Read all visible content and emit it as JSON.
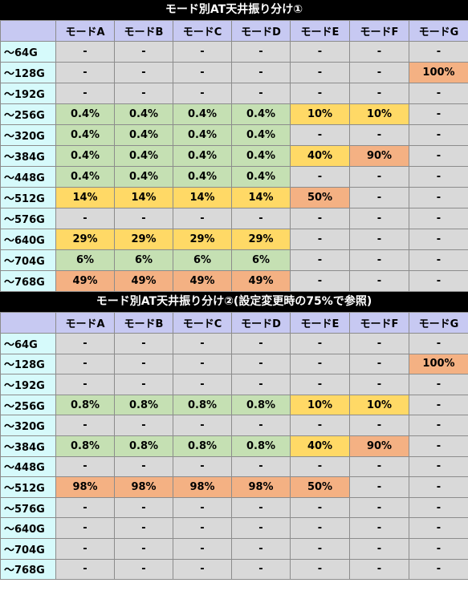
{
  "tables": [
    {
      "title": "モード別AT天井振り分け①",
      "columns": [
        "",
        "モードA",
        "モードB",
        "モードC",
        "モードD",
        "モードE",
        "モードF",
        "モードG"
      ],
      "rows": [
        {
          "label": "～64G",
          "cells": [
            "-",
            "-",
            "-",
            "-",
            "-",
            "-",
            "-"
          ]
        },
        {
          "label": "～128G",
          "cells": [
            "-",
            "-",
            "-",
            "-",
            "-",
            "-",
            "100%"
          ]
        },
        {
          "label": "～192G",
          "cells": [
            "-",
            "-",
            "-",
            "-",
            "-",
            "-",
            "-"
          ]
        },
        {
          "label": "～256G",
          "cells": [
            "0.4%",
            "0.4%",
            "0.4%",
            "0.4%",
            "10%",
            "10%",
            "-"
          ]
        },
        {
          "label": "～320G",
          "cells": [
            "0.4%",
            "0.4%",
            "0.4%",
            "0.4%",
            "-",
            "-",
            "-"
          ]
        },
        {
          "label": "～384G",
          "cells": [
            "0.4%",
            "0.4%",
            "0.4%",
            "0.4%",
            "40%",
            "90%",
            "-"
          ]
        },
        {
          "label": "～448G",
          "cells": [
            "0.4%",
            "0.4%",
            "0.4%",
            "0.4%",
            "-",
            "-",
            "-"
          ]
        },
        {
          "label": "～512G",
          "cells": [
            "14%",
            "14%",
            "14%",
            "14%",
            "50%",
            "-",
            "-"
          ]
        },
        {
          "label": "～576G",
          "cells": [
            "-",
            "-",
            "-",
            "-",
            "-",
            "-",
            "-"
          ]
        },
        {
          "label": "～640G",
          "cells": [
            "29%",
            "29%",
            "29%",
            "29%",
            "-",
            "-",
            "-"
          ]
        },
        {
          "label": "～704G",
          "cells": [
            "6%",
            "6%",
            "6%",
            "6%",
            "-",
            "-",
            "-"
          ]
        },
        {
          "label": "～768G",
          "cells": [
            "49%",
            "49%",
            "49%",
            "49%",
            "-",
            "-",
            "-"
          ]
        }
      ],
      "colors": [
        [
          "none",
          "none",
          "none",
          "none",
          "none",
          "none",
          "none"
        ],
        [
          "none",
          "none",
          "none",
          "none",
          "none",
          "none",
          "orange"
        ],
        [
          "none",
          "none",
          "none",
          "none",
          "none",
          "none",
          "none"
        ],
        [
          "green",
          "green",
          "green",
          "green",
          "yellow",
          "yellow",
          "none"
        ],
        [
          "green",
          "green",
          "green",
          "green",
          "none",
          "none",
          "none"
        ],
        [
          "green",
          "green",
          "green",
          "green",
          "yellow",
          "orange",
          "none"
        ],
        [
          "green",
          "green",
          "green",
          "green",
          "none",
          "none",
          "none"
        ],
        [
          "yellow",
          "yellow",
          "yellow",
          "yellow",
          "orange",
          "none",
          "none"
        ],
        [
          "none",
          "none",
          "none",
          "none",
          "none",
          "none",
          "none"
        ],
        [
          "yellow",
          "yellow",
          "yellow",
          "yellow",
          "none",
          "none",
          "none"
        ],
        [
          "green",
          "green",
          "green",
          "green",
          "none",
          "none",
          "none"
        ],
        [
          "orange",
          "orange",
          "orange",
          "orange",
          "none",
          "none",
          "none"
        ]
      ]
    },
    {
      "title": "モード別AT天井振り分け②(設定変更時の75%で参照)",
      "columns": [
        "",
        "モードA",
        "モードB",
        "モードC",
        "モードD",
        "モードE",
        "モードF",
        "モードG"
      ],
      "rows": [
        {
          "label": "～64G",
          "cells": [
            "-",
            "-",
            "-",
            "-",
            "-",
            "-",
            "-"
          ]
        },
        {
          "label": "～128G",
          "cells": [
            "-",
            "-",
            "-",
            "-",
            "-",
            "-",
            "100%"
          ]
        },
        {
          "label": "～192G",
          "cells": [
            "-",
            "-",
            "-",
            "-",
            "-",
            "-",
            "-"
          ]
        },
        {
          "label": "～256G",
          "cells": [
            "0.8%",
            "0.8%",
            "0.8%",
            "0.8%",
            "10%",
            "10%",
            "-"
          ]
        },
        {
          "label": "～320G",
          "cells": [
            "-",
            "-",
            "-",
            "-",
            "-",
            "-",
            "-"
          ]
        },
        {
          "label": "～384G",
          "cells": [
            "0.8%",
            "0.8%",
            "0.8%",
            "0.8%",
            "40%",
            "90%",
            "-"
          ]
        },
        {
          "label": "～448G",
          "cells": [
            "-",
            "-",
            "-",
            "-",
            "-",
            "-",
            "-"
          ]
        },
        {
          "label": "～512G",
          "cells": [
            "98%",
            "98%",
            "98%",
            "98%",
            "50%",
            "-",
            "-"
          ]
        },
        {
          "label": "～576G",
          "cells": [
            "-",
            "-",
            "-",
            "-",
            "-",
            "-",
            "-"
          ]
        },
        {
          "label": "～640G",
          "cells": [
            "-",
            "-",
            "-",
            "-",
            "-",
            "-",
            "-"
          ]
        },
        {
          "label": "～704G",
          "cells": [
            "-",
            "-",
            "-",
            "-",
            "-",
            "-",
            "-"
          ]
        },
        {
          "label": "～768G",
          "cells": [
            "-",
            "-",
            "-",
            "-",
            "-",
            "-",
            "-"
          ]
        }
      ],
      "colors": [
        [
          "none",
          "none",
          "none",
          "none",
          "none",
          "none",
          "none"
        ],
        [
          "none",
          "none",
          "none",
          "none",
          "none",
          "none",
          "orange"
        ],
        [
          "none",
          "none",
          "none",
          "none",
          "none",
          "none",
          "none"
        ],
        [
          "green",
          "green",
          "green",
          "green",
          "yellow",
          "yellow",
          "none"
        ],
        [
          "none",
          "none",
          "none",
          "none",
          "none",
          "none",
          "none"
        ],
        [
          "green",
          "green",
          "green",
          "green",
          "yellow",
          "orange",
          "none"
        ],
        [
          "none",
          "none",
          "none",
          "none",
          "none",
          "none",
          "none"
        ],
        [
          "orange",
          "orange",
          "orange",
          "orange",
          "orange",
          "none",
          "none"
        ],
        [
          "none",
          "none",
          "none",
          "none",
          "none",
          "none",
          "none"
        ],
        [
          "none",
          "none",
          "none",
          "none",
          "none",
          "none",
          "none"
        ],
        [
          "none",
          "none",
          "none",
          "none",
          "none",
          "none",
          "none"
        ],
        [
          "none",
          "none",
          "none",
          "none",
          "none",
          "none",
          "none"
        ]
      ]
    }
  ],
  "palette": {
    "header": "#c7c9f2",
    "row_label": "#d6fafb",
    "none": "#d9d9d9",
    "green": "#c5e0b3",
    "yellow": "#ffd966",
    "orange": "#f4b183"
  }
}
